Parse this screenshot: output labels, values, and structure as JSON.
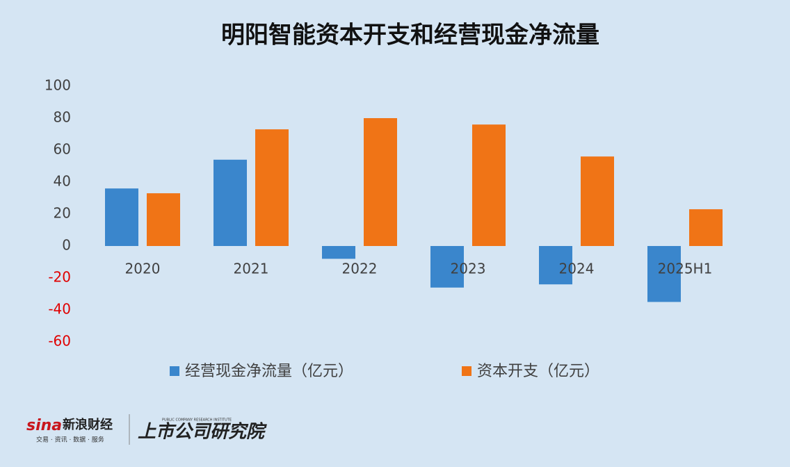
{
  "chart_data": {
    "type": "bar",
    "title": "明阳智能资本开支和经营现金净流量",
    "categories": [
      "2020",
      "2021",
      "2022",
      "2023",
      "2024",
      "2025H1"
    ],
    "series": [
      {
        "name": "经营现金净流量（亿元）",
        "color": "#3a86cc",
        "values": [
          36,
          54,
          -8,
          -26,
          -24,
          -35
        ]
      },
      {
        "name": "资本开支（亿元）",
        "color": "#f07416",
        "values": [
          33,
          73,
          80,
          76,
          56,
          23
        ]
      }
    ],
    "ylim": [
      -60,
      100
    ],
    "yticks": [
      -60,
      -40,
      -20,
      0,
      20,
      40,
      60,
      80,
      100
    ],
    "negative_tick_color": "#e00000",
    "tick_color": "#404040",
    "grid": false,
    "legend": "bottom"
  },
  "footer": {
    "brand": "新浪财经",
    "brand_sub": "交易 · 资讯 · 数据 · 服务",
    "institute": "上市公司研究院",
    "institute_en": "PUBLIC COMPANY RESEARCH INSTITUTE"
  }
}
